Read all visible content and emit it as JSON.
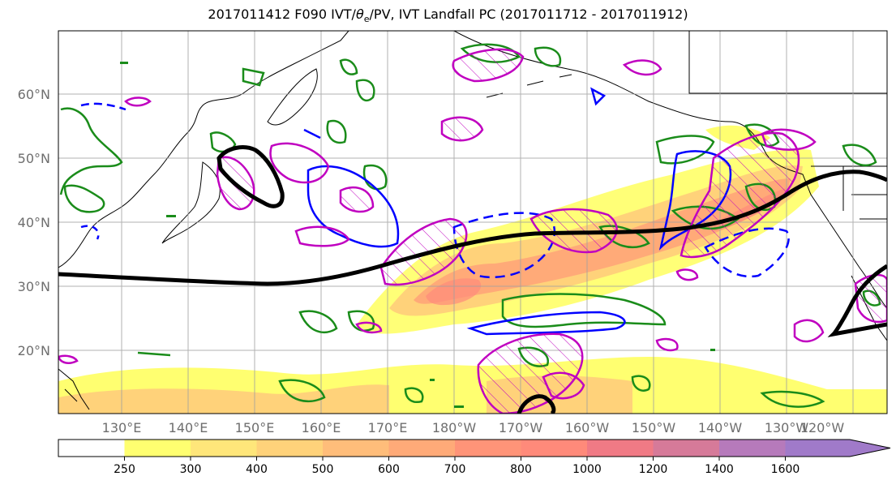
{
  "title": "2017011412 F090 IVT/θe/PV, IVT Landfall PC (2017011712 - 2017011912)",
  "title_parts": {
    "a": "2017011412 F090 IVT/",
    "theta": "θ",
    "sub": "e",
    "b": "/PV, IVT Landfall PC (2017011712 - 2017011912)"
  },
  "map": {
    "lon_range": [
      120,
      245
    ],
    "lat_range": [
      10,
      70
    ],
    "lat_labels": [
      "20°N",
      "30°N",
      "40°N",
      "50°N",
      "60°N"
    ],
    "lat_values": [
      20,
      30,
      40,
      50,
      60
    ],
    "lon_labels": [
      "130°E",
      "140°E",
      "150°E",
      "160°E",
      "170°E",
      "180°W",
      "170°W",
      "160°W",
      "150°W",
      "140°W",
      "130°W",
      "120°W"
    ],
    "lon_values": [
      130,
      140,
      150,
      160,
      170,
      180,
      190,
      200,
      210,
      220,
      230,
      240
    ],
    "gridlines": true
  },
  "colorbar": {
    "labels": [
      "250",
      "300",
      "400",
      "500",
      "600",
      "700",
      "800",
      "1000",
      "1200",
      "1400",
      "1600"
    ],
    "colors": [
      "#ffffff",
      "#ffff70",
      "#ffe67a",
      "#ffd27a",
      "#ffbd7a",
      "#ffaa78",
      "#ff9478",
      "#ff8a7a",
      "#f07a85",
      "#d67a99",
      "#b67abb",
      "#a07ac9"
    ],
    "extend": "max"
  },
  "colors": {
    "ivt_fill": "#ffc07a",
    "theta_e_contour": "#1a8c1a",
    "pv_contour": "#0000ff",
    "pc_contour": "#c000c0",
    "heavy_line": "#000000",
    "grid": "#a0a0a0",
    "coast": "#000000"
  }
}
